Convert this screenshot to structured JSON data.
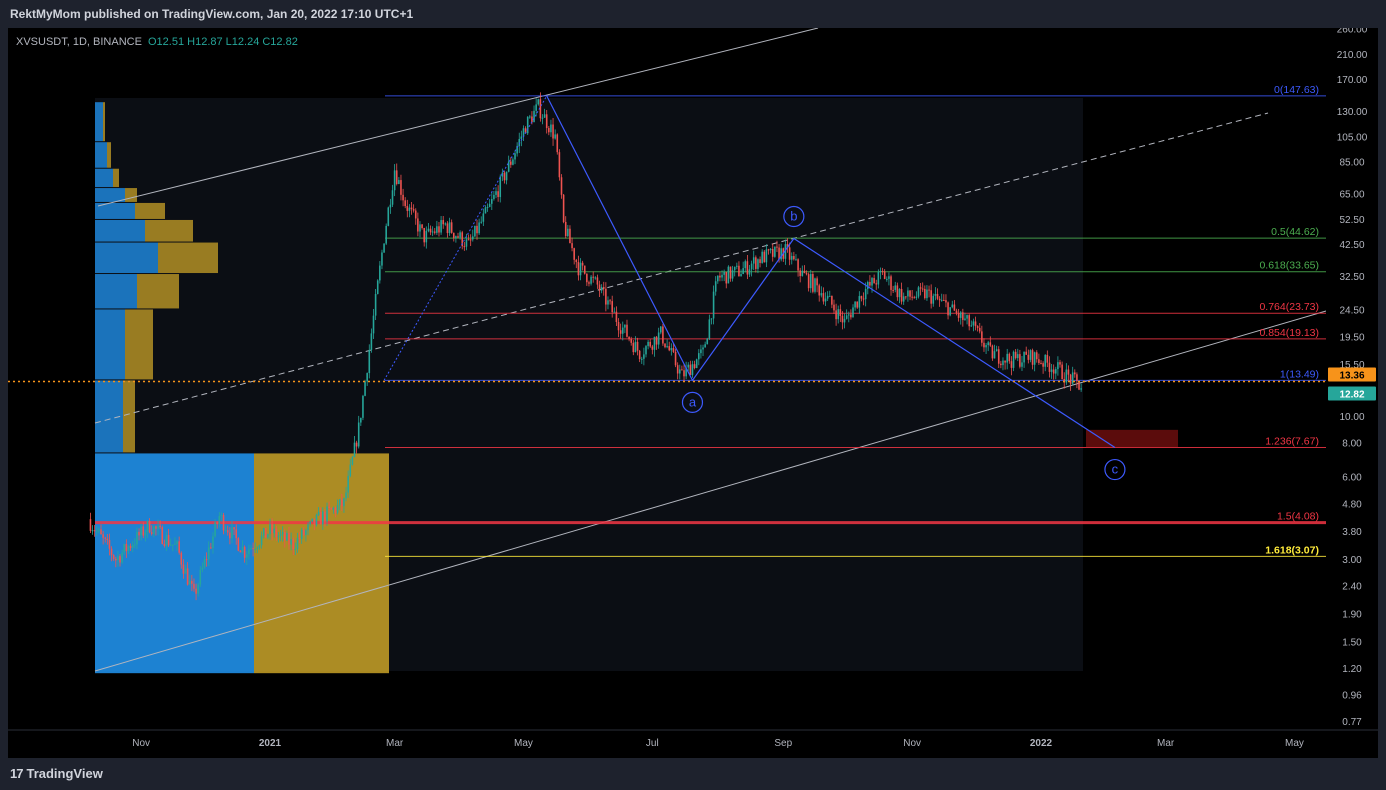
{
  "header": {
    "published_line": "RektMyMom published on TradingView.com, Jan 20, 2022 17:10 UTC+1"
  },
  "footer": {
    "brand": "TradingView",
    "logo_icon": "tradingview-logo-icon"
  },
  "chart_data": {
    "type": "candlestick",
    "symbol": "XVSUSDT",
    "interval": "1D",
    "exchange": "BINANCE",
    "ohlc_labels": {
      "open": "O12.51",
      "high": "H12.87",
      "low": "L12.24",
      "close": "C12.82"
    },
    "y_scale": "log",
    "y_ticks": [
      260,
      210,
      170,
      130,
      105,
      85,
      65,
      52.5,
      42.5,
      32.5,
      24.5,
      19.5,
      15.5,
      10,
      8,
      6,
      4.8,
      3.8,
      3,
      2.4,
      1.9,
      1.5,
      1.2,
      0.96,
      0.77
    ],
    "y_tick_labels": [
      "260.00",
      "210.00",
      "170.00",
      "130.00",
      "105.00",
      "85.00",
      "65.00",
      "52.50",
      "42.50",
      "32.50",
      "24.50",
      "19.50",
      "15.50",
      "10.00",
      "8.00",
      "6.00",
      "4.80",
      "3.80",
      "3.00",
      "2.40",
      "1.90",
      "1.50",
      "1.20",
      "0.96",
      "0.77"
    ],
    "x_ticks": [
      {
        "label": "Nov",
        "date": "2020-11-01"
      },
      {
        "label": "2021",
        "date": "2021-01-01"
      },
      {
        "label": "Mar",
        "date": "2021-03-01"
      },
      {
        "label": "May",
        "date": "2021-05-01"
      },
      {
        "label": "Jul",
        "date": "2021-07-01"
      },
      {
        "label": "Sep",
        "date": "2021-09-01"
      },
      {
        "label": "Nov",
        "date": "2021-11-01"
      },
      {
        "label": "2022",
        "date": "2022-01-01"
      },
      {
        "label": "Mar",
        "date": "2022-03-01"
      },
      {
        "label": "May",
        "date": "2022-05-01"
      }
    ],
    "price_markers": [
      {
        "label": "13.36",
        "value": 13.36,
        "color": "#f7931a"
      },
      {
        "label": "12.82",
        "value": 12.82,
        "color": "#26a69a"
      }
    ],
    "current_price_line": 13.36,
    "price_path": [
      {
        "date": "2020-10-07",
        "price": 4.2
      },
      {
        "date": "2020-10-20",
        "price": 3.0
      },
      {
        "date": "2020-11-05",
        "price": 4.0
      },
      {
        "date": "2020-11-18",
        "price": 3.3
      },
      {
        "date": "2020-11-26",
        "price": 2.2
      },
      {
        "date": "2020-12-08",
        "price": 4.3
      },
      {
        "date": "2020-12-20",
        "price": 3.2
      },
      {
        "date": "2021-01-01",
        "price": 3.8
      },
      {
        "date": "2021-01-12",
        "price": 3.4
      },
      {
        "date": "2021-01-24",
        "price": 4.2
      },
      {
        "date": "2021-02-05",
        "price": 4.8
      },
      {
        "date": "2021-02-12",
        "price": 9.0
      },
      {
        "date": "2021-02-18",
        "price": 20.0
      },
      {
        "date": "2021-02-24",
        "price": 45.0
      },
      {
        "date": "2021-03-01",
        "price": 80.0
      },
      {
        "date": "2021-03-06",
        "price": 60.0
      },
      {
        "date": "2021-03-15",
        "price": 45.0
      },
      {
        "date": "2021-03-25",
        "price": 50.0
      },
      {
        "date": "2021-04-05",
        "price": 42.0
      },
      {
        "date": "2021-04-15",
        "price": 58.0
      },
      {
        "date": "2021-04-25",
        "price": 85.0
      },
      {
        "date": "2021-05-02",
        "price": 115.0
      },
      {
        "date": "2021-05-08",
        "price": 135.0
      },
      {
        "date": "2021-05-16",
        "price": 105.0
      },
      {
        "date": "2021-05-20",
        "price": 50.0
      },
      {
        "date": "2021-05-27",
        "price": 35.0
      },
      {
        "date": "2021-06-05",
        "price": 30.0
      },
      {
        "date": "2021-06-15",
        "price": 22.0
      },
      {
        "date": "2021-06-25",
        "price": 17.0
      },
      {
        "date": "2021-07-05",
        "price": 20.0
      },
      {
        "date": "2021-07-15",
        "price": 14.0
      },
      {
        "date": "2021-07-25",
        "price": 17.0
      },
      {
        "date": "2021-08-01",
        "price": 32.0
      },
      {
        "date": "2021-08-12",
        "price": 34.0
      },
      {
        "date": "2021-08-22",
        "price": 38.0
      },
      {
        "date": "2021-09-02",
        "price": 40.0
      },
      {
        "date": "2021-09-10",
        "price": 33.0
      },
      {
        "date": "2021-09-20",
        "price": 28.0
      },
      {
        "date": "2021-09-30",
        "price": 22.0
      },
      {
        "date": "2021-10-08",
        "price": 28.0
      },
      {
        "date": "2021-10-18",
        "price": 33.0
      },
      {
        "date": "2021-10-28",
        "price": 27.0
      },
      {
        "date": "2021-11-08",
        "price": 28.0
      },
      {
        "date": "2021-11-18",
        "price": 25.0
      },
      {
        "date": "2021-11-30",
        "price": 21.0
      },
      {
        "date": "2021-12-08",
        "price": 17.0
      },
      {
        "date": "2021-12-18",
        "price": 16.0
      },
      {
        "date": "2021-12-28",
        "price": 16.5
      },
      {
        "date": "2022-01-08",
        "price": 15.0
      },
      {
        "date": "2022-01-20",
        "price": 12.82
      }
    ],
    "fib_levels": [
      {
        "ratio": "0",
        "value": 147.63,
        "label": "0(147.63)",
        "color": "#3d5afe"
      },
      {
        "ratio": "0.5",
        "value": 44.62,
        "label": "0.5(44.62)",
        "color": "#4caf50"
      },
      {
        "ratio": "0.618",
        "value": 33.65,
        "label": "0.618(33.65)",
        "color": "#4caf50"
      },
      {
        "ratio": "0.764",
        "value": 23.73,
        "label": "0.764(23.73)",
        "color": "#f23645"
      },
      {
        "ratio": "0.854",
        "value": 19.13,
        "label": "0.854(19.13)",
        "color": "#f23645"
      },
      {
        "ratio": "1",
        "value": 13.49,
        "label": "1(13.49)",
        "color": "#3d5afe"
      },
      {
        "ratio": "1.236",
        "value": 7.67,
        "label": "1.236(7.67)",
        "color": "#f23645"
      },
      {
        "ratio": "1.5",
        "value": 4.08,
        "label": "1.5(4.08)",
        "color": "#f23645"
      },
      {
        "ratio": "1.618",
        "value": 3.07,
        "label": "1.618(3.07)",
        "color": "#ffeb3b"
      }
    ],
    "wave_points": [
      {
        "label": "",
        "date": "2021-05-12",
        "price": 147.63
      },
      {
        "label": "a",
        "date": "2021-07-20",
        "price": 13.49
      },
      {
        "label": "b",
        "date": "2021-09-06",
        "price": 44.5
      },
      {
        "label": "c",
        "date": "2022-02-05",
        "price": 7.67
      }
    ],
    "colors": {
      "up": "#26a69a",
      "down": "#ef5350",
      "wave": "#3d5afe",
      "vp_blue": "#2196f3",
      "vp_gold": "#c9a227",
      "channel": "#b2b5be"
    }
  }
}
